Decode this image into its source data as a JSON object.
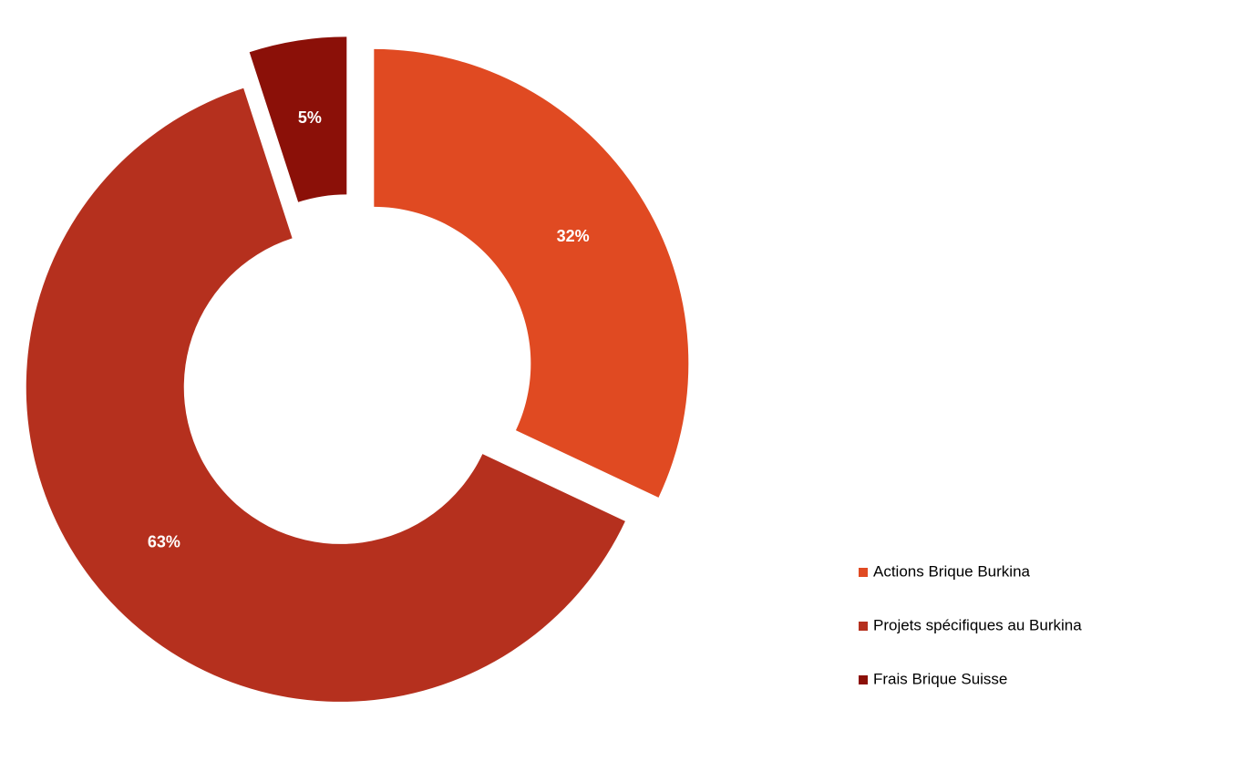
{
  "chart_data": {
    "type": "donut",
    "categories": [
      "Actions Brique Burkina",
      "Projets spécifiques au Burkina",
      "Frais Brique Suisse"
    ],
    "values": [
      32,
      63,
      5
    ],
    "value_labels": [
      "32%",
      "63%",
      "5%"
    ],
    "colors": [
      "#e04a22",
      "#b5301e",
      "#8b1008"
    ],
    "legend": "right"
  }
}
